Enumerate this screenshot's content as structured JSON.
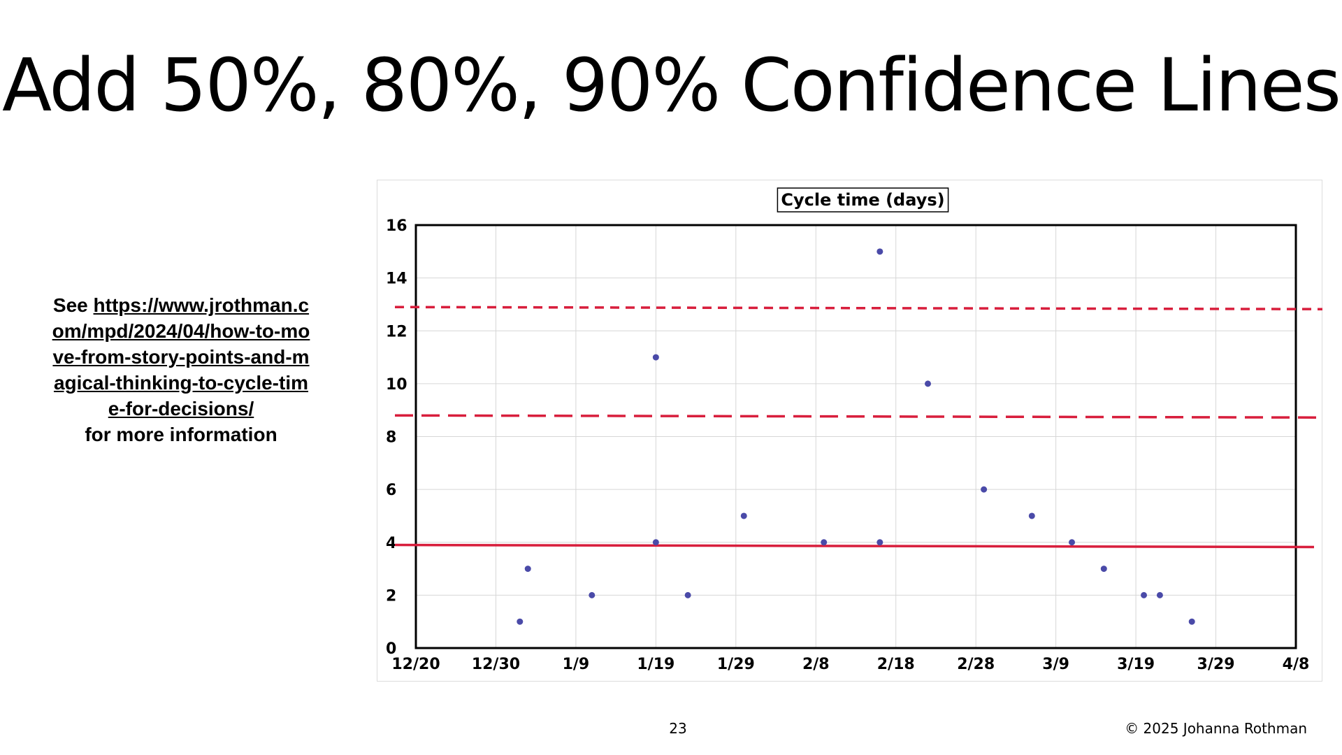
{
  "slide": {
    "title": "Add 50%, 80%, 90% Confidence Lines",
    "note_prefix": "See ",
    "note_link": "https://www.jrothman.com/mpd/2024/04/how-to-move-from-story-points-and-magical-thinking-to-cycle-time-for-decisions/",
    "note_suffix": "for more information",
    "page_number": "23",
    "copyright": "© 2025 Johanna Rothman"
  },
  "colors": {
    "points": "#4a4aa8",
    "confidence_lines": "#d81e3c",
    "grid": "#d6d6d6"
  },
  "chart_data": {
    "type": "scatter",
    "title": "Cycle time (days)",
    "xlabel": "",
    "ylabel": "",
    "x_ticks": [
      "12/20",
      "12/30",
      "1/9",
      "1/19",
      "1/29",
      "2/8",
      "2/18",
      "2/28",
      "3/9",
      "3/19",
      "3/29",
      "4/8"
    ],
    "xlim": [
      "2023-12-20",
      "2024-04-08"
    ],
    "ylim": [
      0,
      16
    ],
    "y_ticks": [
      0,
      2,
      4,
      6,
      8,
      10,
      12,
      14,
      16
    ],
    "grid": true,
    "points": [
      {
        "x": "2024-01-02",
        "y": 1
      },
      {
        "x": "2024-01-03",
        "y": 3
      },
      {
        "x": "2024-01-11",
        "y": 2
      },
      {
        "x": "2024-01-19",
        "y": 11
      },
      {
        "x": "2024-01-19",
        "y": 4
      },
      {
        "x": "2024-01-23",
        "y": 2
      },
      {
        "x": "2024-01-30",
        "y": 5
      },
      {
        "x": "2024-02-09",
        "y": 4
      },
      {
        "x": "2024-02-16",
        "y": 15
      },
      {
        "x": "2024-02-16",
        "y": 4
      },
      {
        "x": "2024-02-22",
        "y": 10
      },
      {
        "x": "2024-02-29",
        "y": 6
      },
      {
        "x": "2024-03-06",
        "y": 5
      },
      {
        "x": "2024-03-11",
        "y": 4
      },
      {
        "x": "2024-03-15",
        "y": 3
      },
      {
        "x": "2024-03-20",
        "y": 2
      },
      {
        "x": "2024-03-22",
        "y": 2
      },
      {
        "x": "2024-03-26",
        "y": 1
      }
    ],
    "confidence_lines": [
      {
        "y": 3.9,
        "style": "solid"
      },
      {
        "y": 8.8,
        "style": "long-dash"
      },
      {
        "y": 12.9,
        "style": "short-dash"
      }
    ]
  }
}
